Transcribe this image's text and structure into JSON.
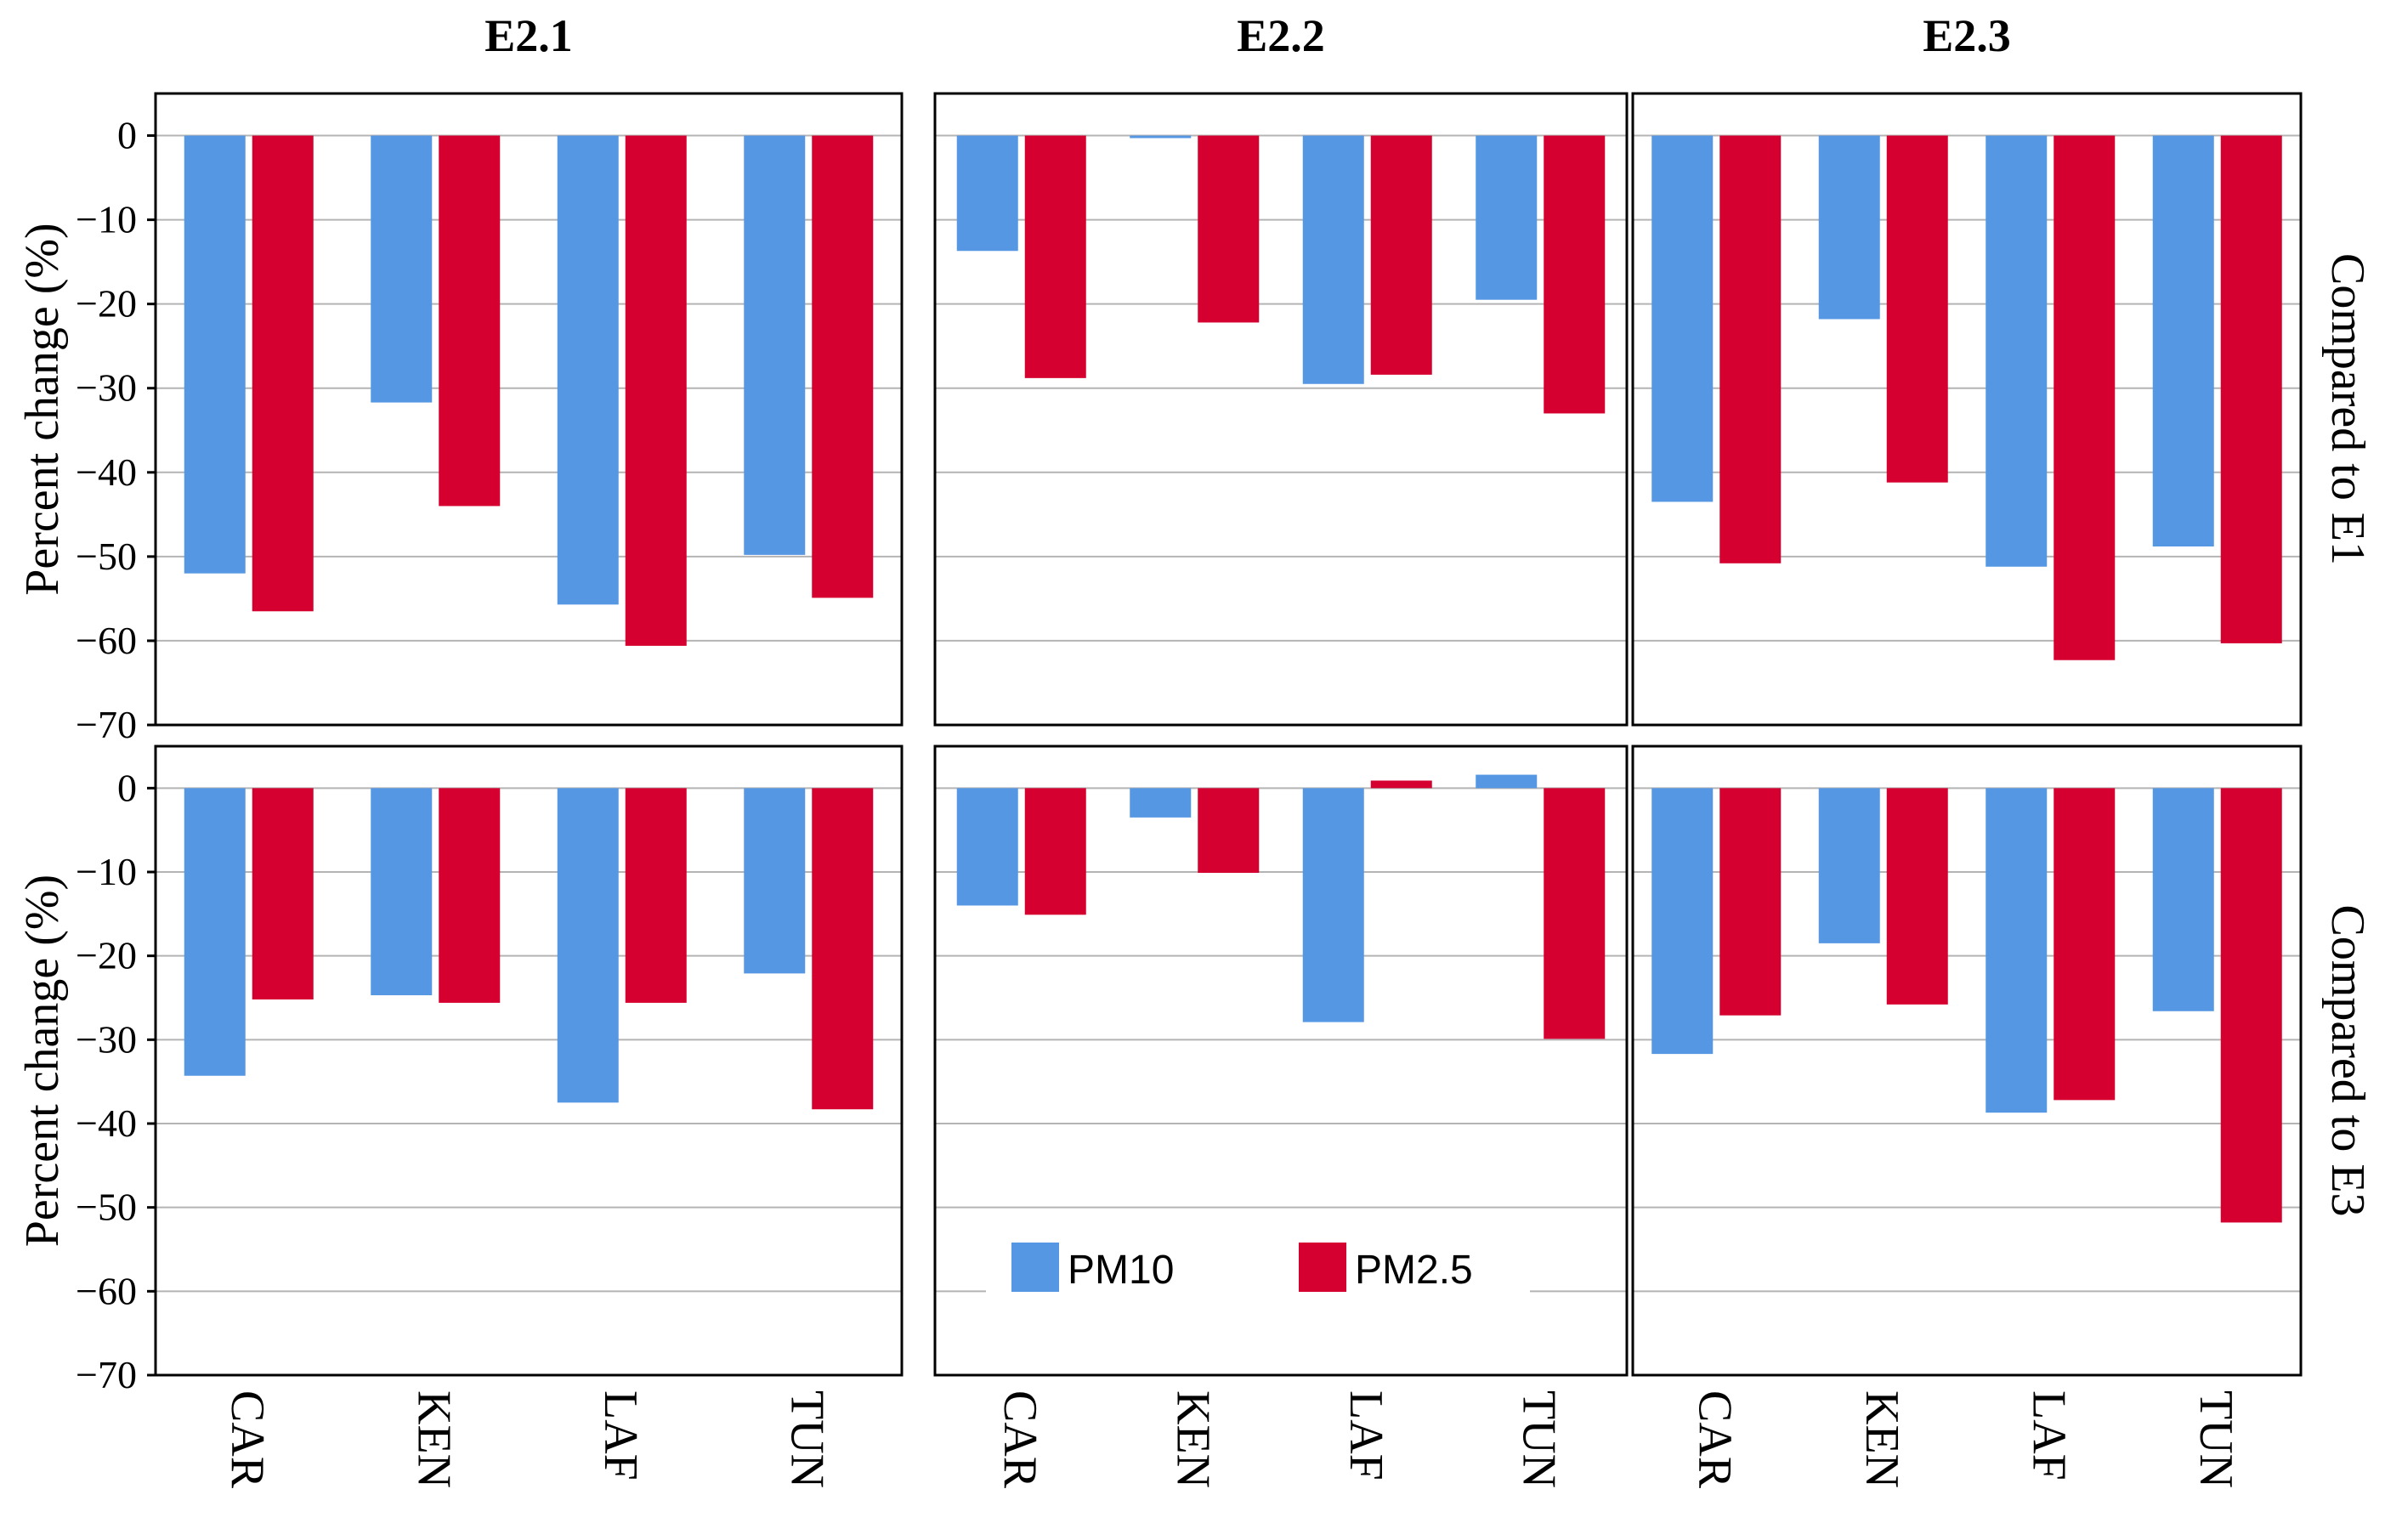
{
  "colors": {
    "PM10": "#5597E3",
    "PM2.5": "#D5002F"
  },
  "legend": {
    "PM10": "PM10",
    "PM2.5": "PM2.5"
  },
  "chart_data": [
    {
      "type": "bar",
      "title": "E2.1",
      "row_label": "Compared to E1",
      "ylabel": "Percent change (%)",
      "ylim": [
        -70,
        5
      ],
      "yticks": [
        "0",
        "-10",
        "-20",
        "-30",
        "-40",
        "-50",
        "-60",
        "-70"
      ],
      "categories": [
        "CAR",
        "KEN",
        "LAF",
        "TUN"
      ],
      "series": [
        {
          "name": "PM10",
          "values": [
            -52,
            -31.7,
            -55.7,
            -49.8
          ]
        },
        {
          "name": "PM2.5",
          "values": [
            -56.5,
            -44,
            -60.6,
            -54.9
          ]
        }
      ]
    },
    {
      "type": "bar",
      "title": "E2.2",
      "row_label": "Compared to E1",
      "ylabel": "Percent change (%)",
      "ylim": [
        -70,
        5
      ],
      "categories": [
        "CAR",
        "KEN",
        "LAF",
        "TUN"
      ],
      "series": [
        {
          "name": "PM10",
          "values": [
            -13.7,
            -0.3,
            -29.5,
            -19.5
          ]
        },
        {
          "name": "PM2.5",
          "values": [
            -28.8,
            -22.2,
            -28.4,
            -33
          ]
        }
      ]
    },
    {
      "type": "bar",
      "title": "E2.3",
      "row_label": "Compared to E1",
      "ylabel": "Percent change (%)",
      "ylim": [
        -70,
        5
      ],
      "categories": [
        "CAR",
        "KEN",
        "LAF",
        "TUN"
      ],
      "series": [
        {
          "name": "PM10",
          "values": [
            -43.5,
            -21.8,
            -51.2,
            -48.8
          ]
        },
        {
          "name": "PM2.5",
          "values": [
            -50.8,
            -41.2,
            -62.3,
            -60.3
          ]
        }
      ]
    },
    {
      "type": "bar",
      "title": "E2.1",
      "row_label": "Compared to E3",
      "ylabel": "Percent change (%)",
      "ylim": [
        -70,
        5
      ],
      "yticks": [
        "0",
        "-10",
        "-20",
        "-30",
        "-40",
        "-50",
        "-60",
        "-70"
      ],
      "categories": [
        "CAR",
        "KEN",
        "LAF",
        "TUN"
      ],
      "series": [
        {
          "name": "PM10",
          "values": [
            -34.3,
            -24.7,
            -37.5,
            -22.1
          ]
        },
        {
          "name": "PM2.5",
          "values": [
            -25.2,
            -25.6,
            -25.6,
            -38.3
          ]
        }
      ]
    },
    {
      "type": "bar",
      "title": "E2.2",
      "row_label": "Compared to E3",
      "ylabel": "Percent change (%)",
      "ylim": [
        -70,
        5
      ],
      "categories": [
        "CAR",
        "KEN",
        "LAF",
        "TUN"
      ],
      "series": [
        {
          "name": "PM10",
          "values": [
            -14,
            -3.5,
            -27.9,
            1.6
          ]
        },
        {
          "name": "PM2.5",
          "values": [
            -15.1,
            -10.1,
            0.9,
            -29.9
          ]
        }
      ]
    },
    {
      "type": "bar",
      "title": "E2.3",
      "row_label": "Compared to E3",
      "ylabel": "Percent change (%)",
      "ylim": [
        -70,
        5
      ],
      "categories": [
        "CAR",
        "KEN",
        "LAF",
        "TUN"
      ],
      "series": [
        {
          "name": "PM10",
          "values": [
            -31.7,
            -18.5,
            -38.7,
            -26.6
          ]
        },
        {
          "name": "PM2.5",
          "values": [
            -27.1,
            -25.8,
            -37.2,
            -51.8
          ]
        }
      ]
    }
  ]
}
